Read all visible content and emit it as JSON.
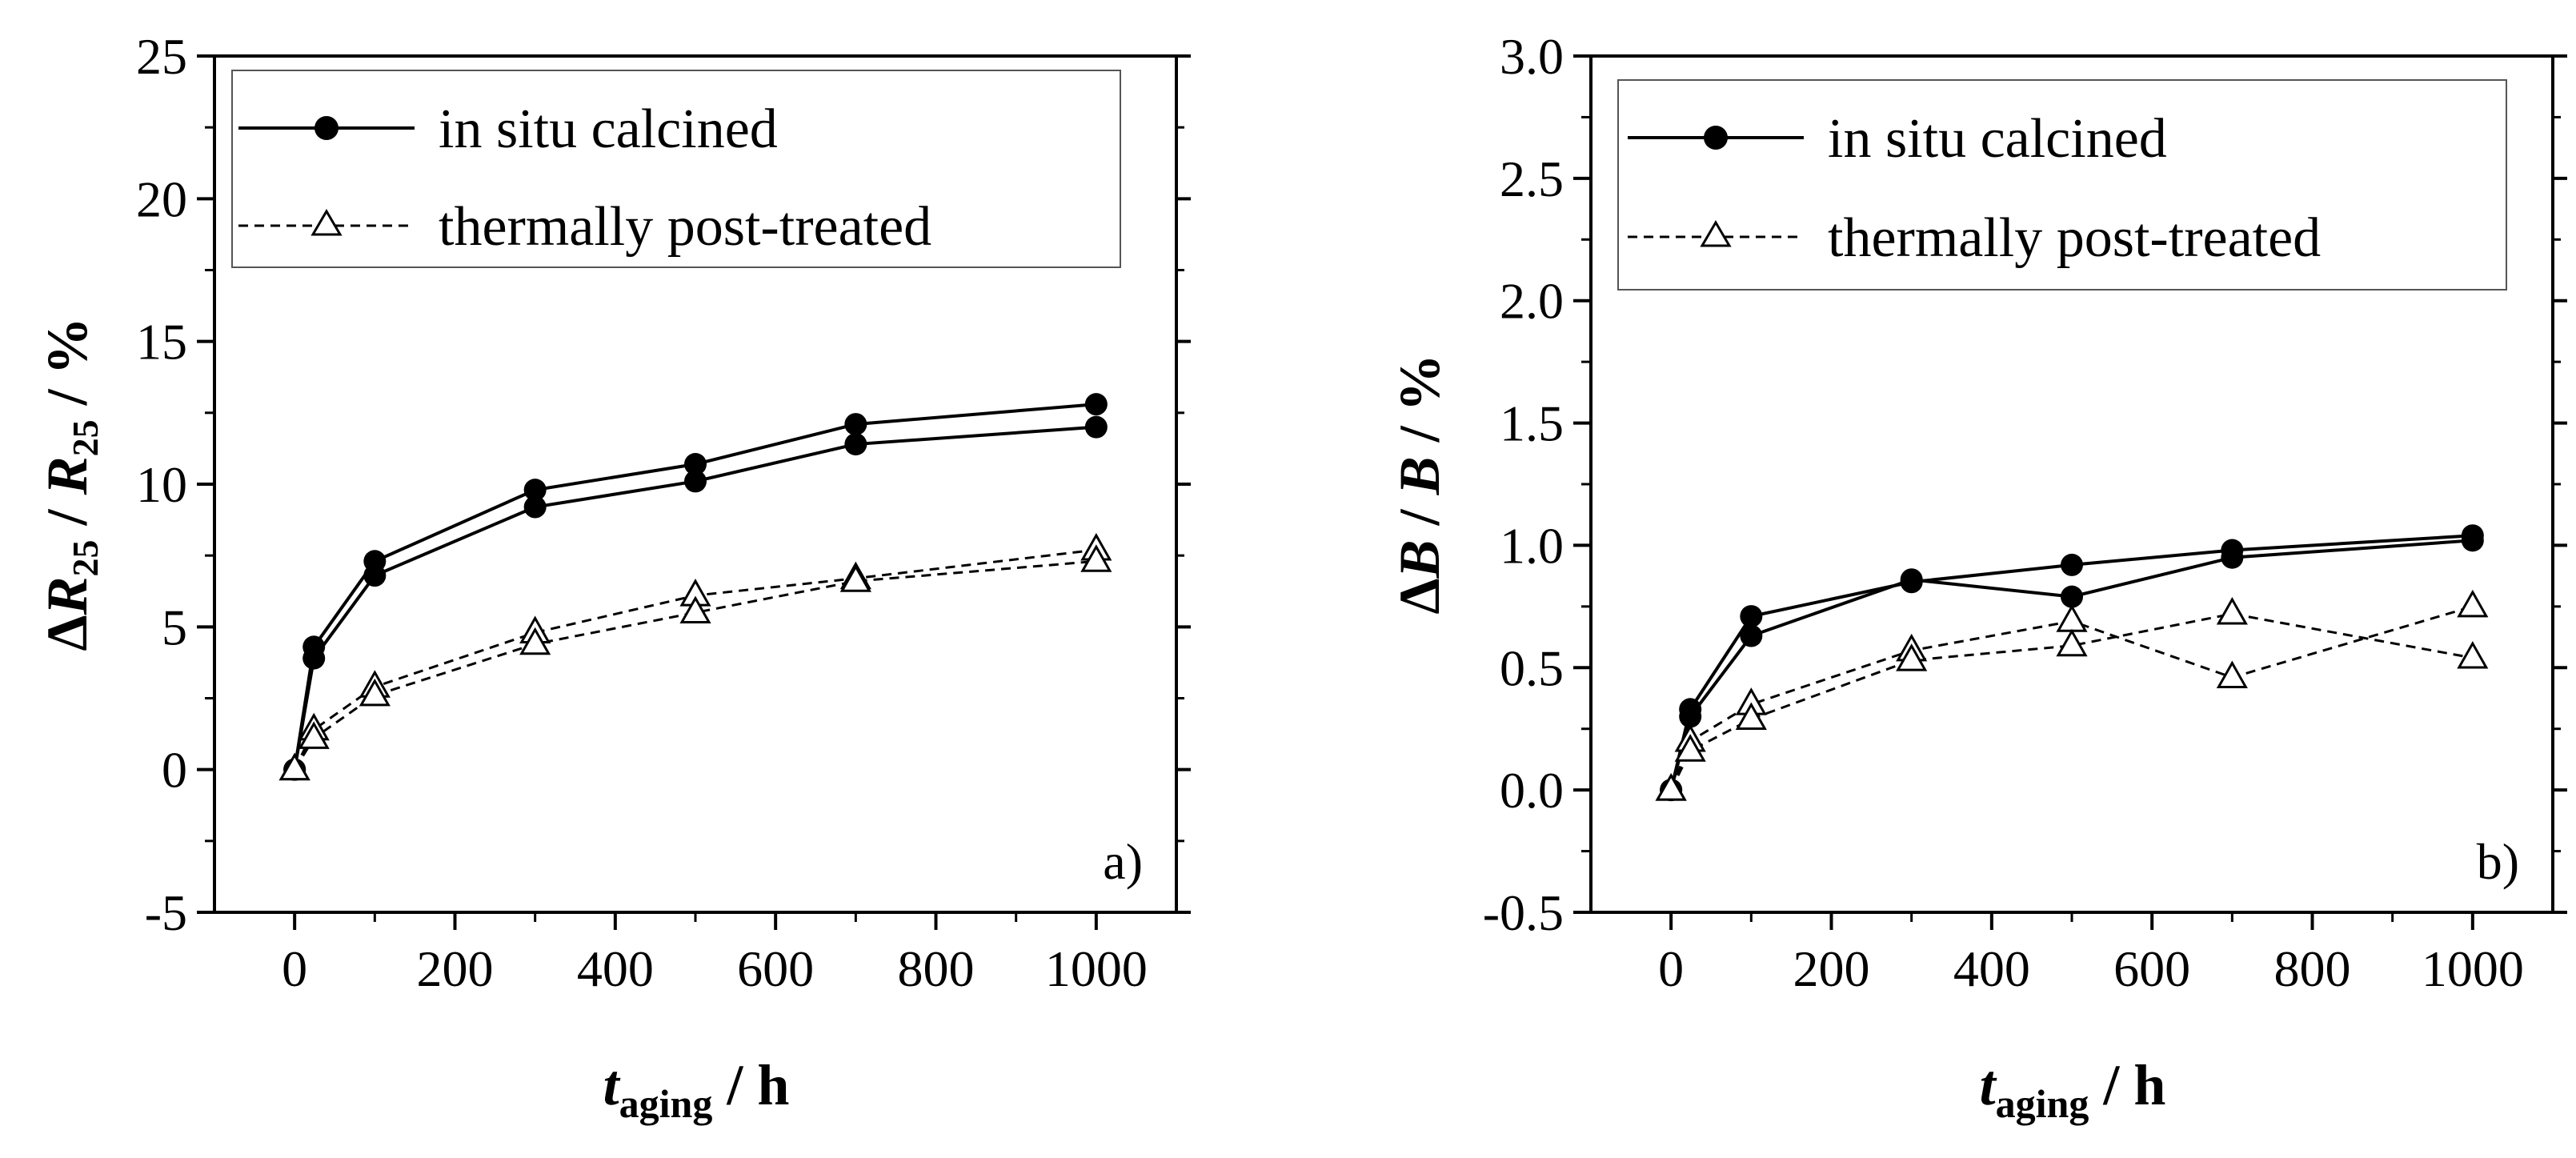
{
  "chart_data": [
    {
      "type": "line",
      "panel_label": "a)",
      "xlabel": {
        "main": "t",
        "sub": "aging",
        "suffix": " / h"
      },
      "ylabel": {
        "delta": "Δ",
        "r": "R",
        "sub1": "25",
        "sep": " / ",
        "r2": "R",
        "sub2": "25",
        "unit": " / %"
      },
      "xlim": [
        -100,
        1100
      ],
      "ylim": [
        -5,
        25
      ],
      "xticks": [
        0,
        200,
        400,
        600,
        800,
        1000
      ],
      "xtick_labels": [
        "0",
        "200",
        "400",
        "600",
        "800",
        "1000"
      ],
      "yticks": [
        -5,
        0,
        5,
        10,
        15,
        20,
        25
      ],
      "ytick_labels": [
        "-5",
        "0",
        "5",
        "10",
        "15",
        "20",
        "25"
      ],
      "legend": {
        "position": "top",
        "entries": [
          "in situ calcined",
          "thermally post-treated"
        ]
      },
      "series": [
        {
          "name": "in situ calcined",
          "style": "solid",
          "marker": "filled-circle",
          "x": [
            0,
            24,
            100,
            300,
            500,
            700,
            1000
          ],
          "y": [
            0,
            4.3,
            7.3,
            9.8,
            10.7,
            12.1,
            12.8
          ]
        },
        {
          "name": "in situ calcined",
          "style": "solid",
          "marker": "filled-circle",
          "x": [
            0,
            24,
            100,
            300,
            500,
            700,
            1000
          ],
          "y": [
            0,
            3.9,
            6.8,
            9.2,
            10.1,
            11.4,
            12.0
          ]
        },
        {
          "name": "thermally post-treated",
          "style": "dashed",
          "marker": "open-triangle",
          "x": [
            0,
            24,
            100,
            300,
            500,
            700,
            1000
          ],
          "y": [
            0,
            1.4,
            2.9,
            4.8,
            6.1,
            6.7,
            7.7
          ]
        },
        {
          "name": "thermally post-treated",
          "style": "dashed",
          "marker": "open-triangle",
          "x": [
            0,
            24,
            100,
            300,
            500,
            700,
            1000
          ],
          "y": [
            0,
            1.1,
            2.6,
            4.4,
            5.5,
            6.6,
            7.3
          ]
        }
      ]
    },
    {
      "type": "line",
      "panel_label": "b)",
      "xlabel": {
        "main": "t",
        "sub": "aging",
        "suffix": " / h"
      },
      "ylabel": {
        "delta": "Δ",
        "b": "B",
        "sep": " / ",
        "b2": "B",
        "unit": " / %"
      },
      "xlim": [
        -100,
        1100
      ],
      "ylim": [
        -0.5,
        3.0
      ],
      "xticks": [
        0,
        200,
        400,
        600,
        800,
        1000
      ],
      "xtick_labels": [
        "0",
        "200",
        "400",
        "600",
        "800",
        "1000"
      ],
      "yticks": [
        -0.5,
        0.0,
        0.5,
        1.0,
        1.5,
        2.0,
        2.5,
        3.0
      ],
      "ytick_labels": [
        "-0.5",
        "0.0",
        "0.5",
        "1.0",
        "1.5",
        "2.0",
        "2.5",
        "3.0"
      ],
      "legend": {
        "position": "top",
        "entries": [
          "in situ calcined",
          "thermally post-treated"
        ]
      },
      "series": [
        {
          "name": "in situ calcined",
          "style": "solid",
          "marker": "filled-circle",
          "x": [
            0,
            24,
            100,
            300,
            500,
            700,
            1000
          ],
          "y": [
            0,
            0.33,
            0.71,
            0.85,
            0.92,
            0.98,
            1.04
          ]
        },
        {
          "name": "in situ calcined",
          "style": "solid",
          "marker": "filled-circle",
          "x": [
            0,
            24,
            100,
            300,
            500,
            700,
            1000
          ],
          "y": [
            0,
            0.3,
            0.63,
            0.86,
            0.79,
            0.95,
            1.02
          ]
        },
        {
          "name": "thermally post-treated",
          "style": "dashed",
          "marker": "open-triangle",
          "x": [
            0,
            24,
            100,
            300,
            500,
            700,
            1000
          ],
          "y": [
            0,
            0.2,
            0.35,
            0.57,
            0.69,
            0.46,
            0.75
          ]
        },
        {
          "name": "thermally post-treated",
          "style": "dashed",
          "marker": "open-triangle",
          "x": [
            0,
            24,
            100,
            300,
            500,
            700,
            1000
          ],
          "y": [
            0,
            0.16,
            0.29,
            0.53,
            0.59,
            0.72,
            0.54
          ]
        }
      ]
    }
  ]
}
